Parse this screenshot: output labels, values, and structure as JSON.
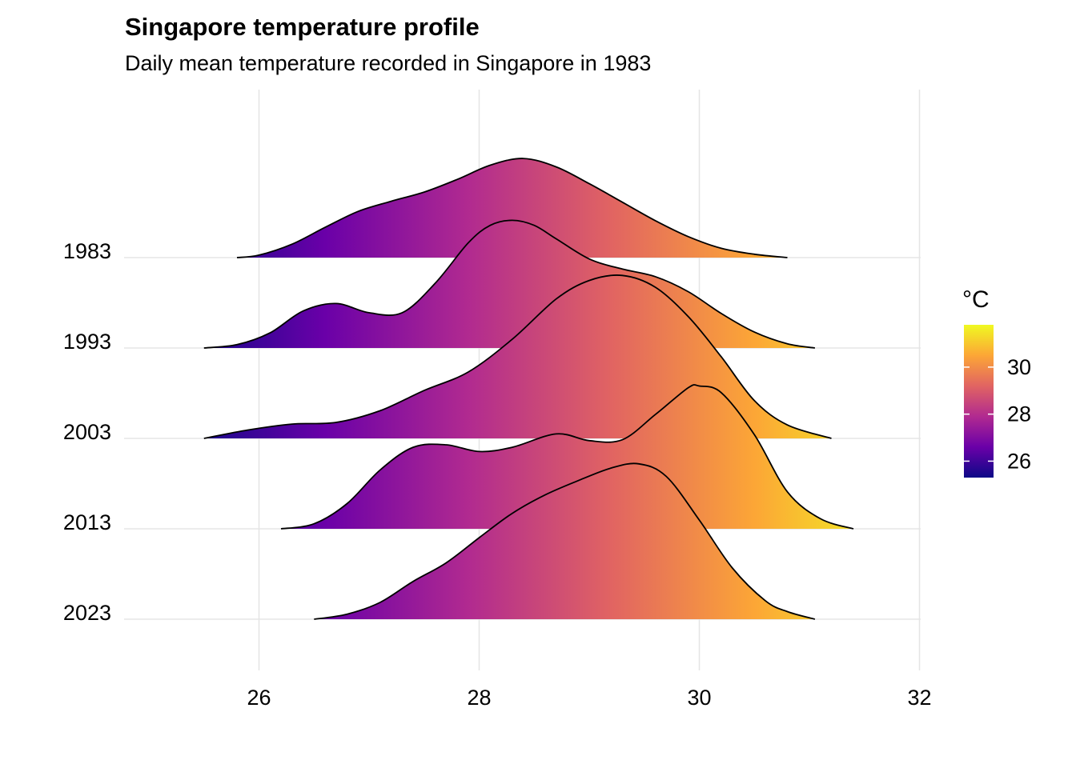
{
  "title": "Singapore temperature profile",
  "subtitle": "Daily mean temperature recorded in Singapore in 1983",
  "chart_data": {
    "type": "ridgeline",
    "title": "Singapore temperature profile",
    "subtitle": "Daily mean temperature recorded in Singapore in 1983",
    "xlabel": "",
    "ylabel": "",
    "xlim": [
      24.7,
      32.1
    ],
    "x_ticks": [
      26,
      28,
      30,
      32
    ],
    "categories": [
      "1983",
      "1993",
      "2003",
      "2013",
      "2023"
    ],
    "grid": true,
    "legend": {
      "title": "°C",
      "position": "right",
      "range": [
        25.3,
        31.8
      ],
      "ticks": [
        26,
        28,
        30
      ],
      "palette": "plasma",
      "stops": [
        "#0d0887",
        "#6a00a8",
        "#b12a90",
        "#e16462",
        "#fca636",
        "#f0f921"
      ]
    },
    "series": [
      {
        "name": "1983",
        "x": [
          25.8,
          26.0,
          26.3,
          26.6,
          26.9,
          27.2,
          27.5,
          27.8,
          28.1,
          28.4,
          28.7,
          29.0,
          29.3,
          29.6,
          29.9,
          30.2,
          30.5,
          30.8
        ],
        "density": [
          0.0,
          0.03,
          0.16,
          0.36,
          0.55,
          0.67,
          0.78,
          0.93,
          1.1,
          1.18,
          1.08,
          0.88,
          0.66,
          0.44,
          0.25,
          0.11,
          0.04,
          0.0
        ]
      },
      {
        "name": "1993",
        "x": [
          25.5,
          25.8,
          26.1,
          26.4,
          26.7,
          27.0,
          27.3,
          27.6,
          27.9,
          28.1,
          28.3,
          28.5,
          28.7,
          29.0,
          29.3,
          29.6,
          29.9,
          30.2,
          30.5,
          30.8,
          31.05
        ],
        "density": [
          0.0,
          0.04,
          0.18,
          0.44,
          0.53,
          0.42,
          0.42,
          0.77,
          1.25,
          1.46,
          1.52,
          1.46,
          1.3,
          1.06,
          0.94,
          0.85,
          0.67,
          0.41,
          0.19,
          0.05,
          0.0
        ]
      },
      {
        "name": "2003",
        "x": [
          25.5,
          25.9,
          26.3,
          26.7,
          27.1,
          27.5,
          27.9,
          28.3,
          28.7,
          29.0,
          29.3,
          29.6,
          29.9,
          30.2,
          30.5,
          30.8,
          31.2
        ],
        "density": [
          0.0,
          0.1,
          0.17,
          0.19,
          0.33,
          0.57,
          0.79,
          1.18,
          1.66,
          1.88,
          1.94,
          1.8,
          1.45,
          0.97,
          0.45,
          0.16,
          0.0
        ]
      },
      {
        "name": "2013",
        "x": [
          26.2,
          26.5,
          26.8,
          27.1,
          27.4,
          27.7,
          28.0,
          28.3,
          28.7,
          29.0,
          29.3,
          29.6,
          29.9,
          30.0,
          30.2,
          30.5,
          30.8,
          31.1,
          31.4
        ],
        "density": [
          0.0,
          0.06,
          0.3,
          0.7,
          0.97,
          1.0,
          0.92,
          0.97,
          1.13,
          1.05,
          1.06,
          1.36,
          1.68,
          1.7,
          1.62,
          1.12,
          0.44,
          0.12,
          0.0
        ]
      },
      {
        "name": "2023",
        "x": [
          26.5,
          26.8,
          27.1,
          27.4,
          27.7,
          28.0,
          28.3,
          28.6,
          28.9,
          29.2,
          29.45,
          29.7,
          30.0,
          30.3,
          30.6,
          30.8,
          31.05
        ],
        "density": [
          0.0,
          0.06,
          0.2,
          0.45,
          0.67,
          0.97,
          1.26,
          1.48,
          1.65,
          1.8,
          1.85,
          1.7,
          1.18,
          0.61,
          0.22,
          0.09,
          0.0
        ]
      }
    ]
  }
}
